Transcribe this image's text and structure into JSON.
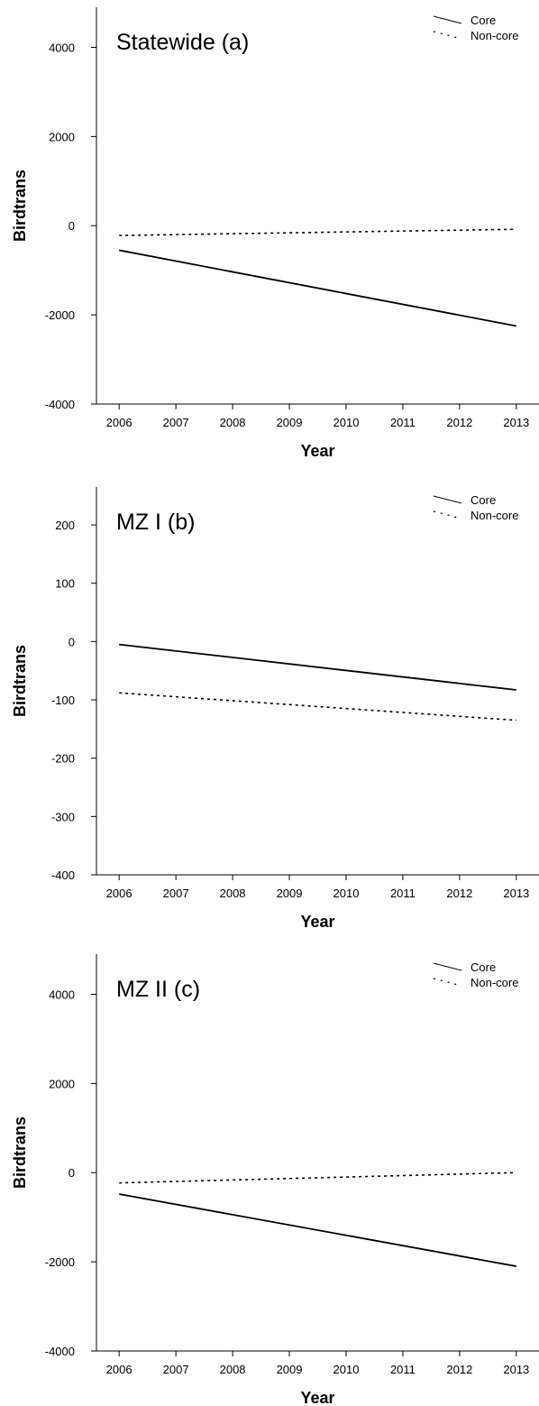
{
  "chart_data": [
    {
      "type": "line",
      "title": "Statewide (a)",
      "xlabel": "Year",
      "ylabel": "Birdtrans",
      "x": [
        2006,
        2013
      ],
      "xlim": [
        2005.6,
        2013.4
      ],
      "ylim": [
        -4000,
        4900
      ],
      "yticks": [
        -4000,
        -2000,
        0,
        2000,
        4000
      ],
      "xticks": [
        2006,
        2007,
        2008,
        2009,
        2010,
        2011,
        2012,
        2013
      ],
      "series": [
        {
          "name": "Core",
          "style": "solid",
          "values": [
            -550,
            -2250
          ]
        },
        {
          "name": "Non-core",
          "style": "dotted",
          "values": [
            -220,
            -80
          ]
        }
      ],
      "legend": "top-right",
      "grid": false
    },
    {
      "type": "line",
      "title": "MZ I (b)",
      "xlabel": "Year",
      "ylabel": "Birdtrans",
      "x": [
        2006,
        2013
      ],
      "xlim": [
        2005.6,
        2013.4
      ],
      "ylim": [
        -400,
        265
      ],
      "yticks": [
        -400,
        -300,
        -200,
        -100,
        0,
        100,
        200
      ],
      "xticks": [
        2006,
        2007,
        2008,
        2009,
        2010,
        2011,
        2012,
        2013
      ],
      "series": [
        {
          "name": "Core",
          "style": "solid",
          "values": [
            -5,
            -83
          ]
        },
        {
          "name": "Non-core",
          "style": "dotted",
          "values": [
            -88,
            -135
          ]
        }
      ],
      "legend": "top-right",
      "grid": false
    },
    {
      "type": "line",
      "title": "MZ II (c)",
      "xlabel": "Year",
      "ylabel": "Birdtrans",
      "x": [
        2006,
        2013
      ],
      "xlim": [
        2005.6,
        2013.4
      ],
      "ylim": [
        -4000,
        4900
      ],
      "yticks": [
        -4000,
        -2000,
        0,
        2000,
        4000
      ],
      "xticks": [
        2006,
        2007,
        2008,
        2009,
        2010,
        2011,
        2012,
        2013
      ],
      "series": [
        {
          "name": "Core",
          "style": "solid",
          "values": [
            -480,
            -2100
          ]
        },
        {
          "name": "Non-core",
          "style": "dotted",
          "values": [
            -230,
            0
          ]
        }
      ],
      "legend": "top-right",
      "grid": false
    }
  ]
}
